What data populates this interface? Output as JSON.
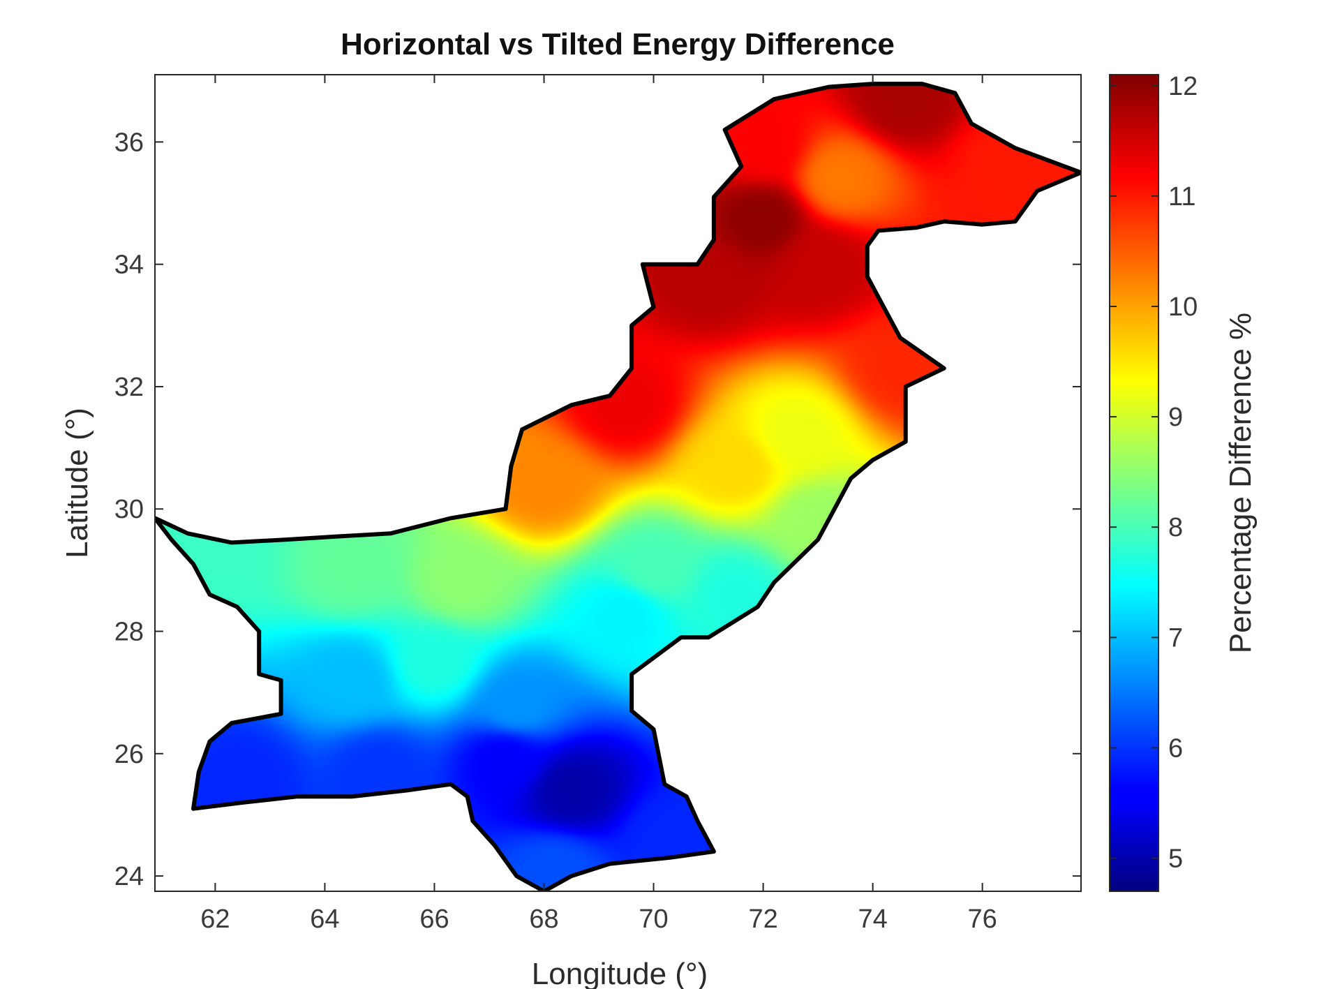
{
  "chart_data": {
    "type": "heatmap",
    "title": "Horizontal vs Tilted Energy Difference",
    "xlabel": "Longitude (°)",
    "ylabel": "Latitude (°)",
    "colorbar_label": "Percentage Difference %",
    "xlim": [
      60.9,
      77.8
    ],
    "ylim": [
      23.75,
      37.1
    ],
    "clim": [
      4.7,
      12.1
    ],
    "x_ticks": [
      62,
      64,
      66,
      68,
      70,
      72,
      74,
      76
    ],
    "y_ticks": [
      24,
      26,
      28,
      30,
      32,
      34,
      36
    ],
    "colorbar_ticks": [
      5,
      6,
      7,
      8,
      9,
      10,
      11,
      12
    ],
    "colormap": "jet",
    "grid": false,
    "legend": "colorbar-right",
    "region_outline": [
      [
        60.9,
        29.85
      ],
      [
        61.5,
        29.6
      ],
      [
        62.3,
        29.45
      ],
      [
        63.3,
        29.5
      ],
      [
        64.2,
        29.55
      ],
      [
        65.2,
        29.6
      ],
      [
        66.3,
        29.85
      ],
      [
        67.3,
        30.0
      ],
      [
        67.4,
        30.7
      ],
      [
        67.6,
        31.3
      ],
      [
        68.5,
        31.7
      ],
      [
        69.2,
        31.85
      ],
      [
        69.6,
        32.3
      ],
      [
        69.6,
        33.0
      ],
      [
        70.0,
        33.3
      ],
      [
        69.8,
        34.0
      ],
      [
        70.8,
        34.0
      ],
      [
        71.1,
        34.4
      ],
      [
        71.1,
        35.1
      ],
      [
        71.6,
        35.6
      ],
      [
        71.3,
        36.2
      ],
      [
        72.2,
        36.7
      ],
      [
        73.2,
        36.9
      ],
      [
        74.0,
        36.95
      ],
      [
        74.9,
        36.95
      ],
      [
        75.5,
        36.8
      ],
      [
        75.8,
        36.3
      ],
      [
        76.6,
        35.9
      ],
      [
        77.8,
        35.5
      ],
      [
        77.0,
        35.2
      ],
      [
        76.6,
        34.7
      ],
      [
        76.0,
        34.65
      ],
      [
        75.3,
        34.7
      ],
      [
        74.8,
        34.6
      ],
      [
        74.1,
        34.55
      ],
      [
        73.9,
        34.3
      ],
      [
        73.9,
        33.8
      ],
      [
        74.2,
        33.3
      ],
      [
        74.5,
        32.8
      ],
      [
        75.3,
        32.3
      ],
      [
        74.6,
        32.0
      ],
      [
        74.6,
        31.5
      ],
      [
        74.6,
        31.1
      ],
      [
        74.0,
        30.8
      ],
      [
        73.6,
        30.5
      ],
      [
        73.3,
        30.0
      ],
      [
        73.0,
        29.5
      ],
      [
        72.2,
        28.8
      ],
      [
        71.9,
        28.4
      ],
      [
        71.0,
        27.9
      ],
      [
        70.5,
        27.9
      ],
      [
        69.6,
        27.3
      ],
      [
        69.6,
        26.7
      ],
      [
        70.0,
        26.4
      ],
      [
        70.2,
        25.5
      ],
      [
        70.6,
        25.3
      ],
      [
        70.8,
        24.9
      ],
      [
        71.1,
        24.4
      ],
      [
        70.3,
        24.3
      ],
      [
        69.2,
        24.2
      ],
      [
        68.5,
        24.0
      ],
      [
        68.0,
        23.75
      ],
      [
        67.5,
        24.0
      ],
      [
        67.1,
        24.5
      ],
      [
        66.7,
        24.9
      ],
      [
        66.6,
        25.3
      ],
      [
        66.3,
        25.5
      ],
      [
        65.5,
        25.4
      ],
      [
        64.5,
        25.3
      ],
      [
        63.5,
        25.3
      ],
      [
        62.5,
        25.2
      ],
      [
        61.6,
        25.1
      ],
      [
        61.7,
        25.7
      ],
      [
        61.9,
        26.2
      ],
      [
        62.3,
        26.5
      ],
      [
        63.2,
        26.65
      ],
      [
        63.2,
        27.2
      ],
      [
        62.8,
        27.3
      ],
      [
        62.8,
        28.0
      ],
      [
        62.4,
        28.4
      ],
      [
        61.9,
        28.6
      ],
      [
        61.6,
        29.1
      ],
      [
        61.2,
        29.5
      ],
      [
        60.9,
        29.85
      ]
    ],
    "field_features": [
      {
        "lon": 72.0,
        "lat": 34.75,
        "value": 12.0
      },
      {
        "lon": 73.0,
        "lat": 34.0,
        "value": 11.6
      },
      {
        "lon": 71.0,
        "lat": 33.8,
        "value": 11.7
      },
      {
        "lon": 74.6,
        "lat": 36.7,
        "value": 11.8
      },
      {
        "lon": 73.4,
        "lat": 35.4,
        "value": 10.3
      },
      {
        "lon": 72.0,
        "lat": 35.9,
        "value": 11.2
      },
      {
        "lon": 76.5,
        "lat": 35.7,
        "value": 11.0
      },
      {
        "lon": 72.6,
        "lat": 31.2,
        "value": 9.2
      },
      {
        "lon": 71.5,
        "lat": 30.7,
        "value": 9.6
      },
      {
        "lon": 68.0,
        "lat": 30.4,
        "value": 10.2
      },
      {
        "lon": 69.5,
        "lat": 31.7,
        "value": 11.3
      },
      {
        "lon": 70.0,
        "lat": 29.0,
        "value": 8.0
      },
      {
        "lon": 66.5,
        "lat": 28.8,
        "value": 8.5
      },
      {
        "lon": 64.5,
        "lat": 29.0,
        "value": 8.2
      },
      {
        "lon": 62.0,
        "lat": 29.3,
        "value": 7.9
      },
      {
        "lon": 64.5,
        "lat": 27.2,
        "value": 7.0
      },
      {
        "lon": 66.0,
        "lat": 27.5,
        "value": 7.7
      },
      {
        "lon": 67.5,
        "lat": 26.8,
        "value": 6.7
      },
      {
        "lon": 62.5,
        "lat": 25.6,
        "value": 5.9
      },
      {
        "lon": 65.0,
        "lat": 25.7,
        "value": 6.0
      },
      {
        "lon": 68.5,
        "lat": 25.4,
        "value": 5.0
      },
      {
        "lon": 67.3,
        "lat": 25.9,
        "value": 5.6
      },
      {
        "lon": 70.3,
        "lat": 24.6,
        "value": 5.9
      },
      {
        "lon": 68.2,
        "lat": 24.1,
        "value": 6.2
      },
      {
        "lon": 69.5,
        "lat": 28.3,
        "value": 7.4
      },
      {
        "lon": 71.5,
        "lat": 28.6,
        "value": 7.7
      },
      {
        "lon": 73.0,
        "lat": 29.8,
        "value": 8.6
      },
      {
        "lon": 74.6,
        "lat": 32.3,
        "value": 10.9
      }
    ]
  }
}
